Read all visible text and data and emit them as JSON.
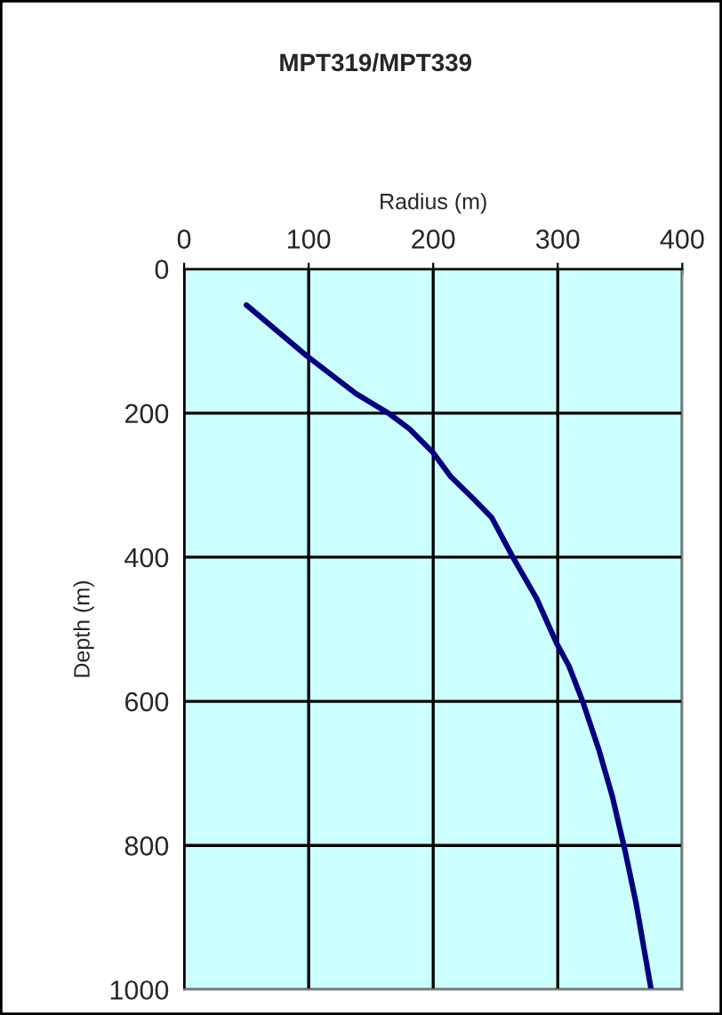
{
  "chart_data": {
    "type": "line",
    "title": "MPT319/MPT339",
    "xlabel": "Radius (m)",
    "ylabel": "Depth (m)",
    "x": [
      50,
      98,
      138,
      164,
      181,
      200,
      214,
      233,
      247,
      264,
      283,
      299,
      309,
      320,
      333,
      344,
      354,
      363,
      375
    ],
    "series": [
      {
        "color": "#000080",
        "values": [
          50,
          120,
          173,
          200,
          222,
          255,
          288,
          320,
          345,
          400,
          457,
          519,
          551,
          600,
          667,
          733,
          807,
          881,
          1000
        ]
      }
    ],
    "xlim": [
      0,
      400
    ],
    "xticks": [
      0,
      100,
      200,
      300,
      400
    ],
    "ylim": [
      1000,
      0
    ],
    "yticks": [
      0,
      200,
      400,
      600,
      800,
      1000
    ],
    "grid": true,
    "legend": false,
    "marker": "none",
    "line_style": "solid"
  }
}
